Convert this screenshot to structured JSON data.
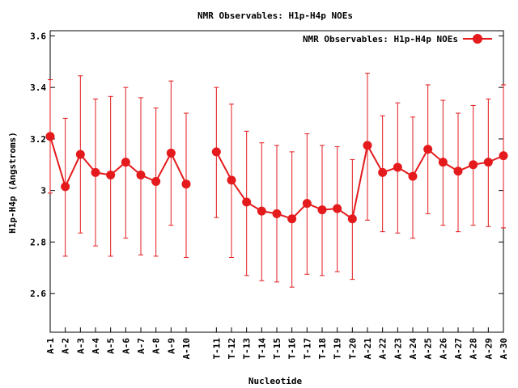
{
  "chart_data": {
    "type": "line",
    "title": "NMR Observables: H1p-H4p NOEs",
    "xlabel": "Nucleotide",
    "ylabel": "H1p-H4p (Angstroms)",
    "ylim": [
      2.45,
      3.62
    ],
    "yticks": [
      2.6,
      2.8,
      3,
      3.2,
      3.4,
      3.6
    ],
    "ytick_labels": [
      "2.6",
      "2.8",
      "3",
      "3.2",
      "3.4",
      "3.6"
    ],
    "grid": false,
    "legend_position": "top-right",
    "color": "#e41a1c",
    "x_gap_after_index": 9,
    "categories": [
      "A-1",
      "A-2",
      "A-3",
      "A-4",
      "A-5",
      "A-6",
      "A-7",
      "A-8",
      "A-9",
      "A-10",
      "T-11",
      "T-12",
      "T-13",
      "T-14",
      "T-15",
      "T-16",
      "T-17",
      "T-18",
      "T-19",
      "T-20",
      "A-21",
      "A-22",
      "A-23",
      "A-24",
      "A-25",
      "A-26",
      "A-27",
      "A-28",
      "A-29",
      "A-30"
    ],
    "series": [
      {
        "name": "NMR Observables: H1p-H4p NOEs",
        "segments": [
          [
            0,
            9
          ],
          [
            10,
            29
          ]
        ],
        "values": [
          3.21,
          3.015,
          3.14,
          3.07,
          3.06,
          3.11,
          3.06,
          3.035,
          3.145,
          3.025,
          3.15,
          3.04,
          2.955,
          2.92,
          2.91,
          2.89,
          2.95,
          2.925,
          2.93,
          2.89,
          3.175,
          3.07,
          3.09,
          3.055,
          3.16,
          3.11,
          3.075,
          3.1,
          3.11,
          3.135
        ],
        "err_low": [
          2.99,
          2.745,
          2.835,
          2.785,
          2.745,
          2.815,
          2.75,
          2.745,
          2.865,
          2.74,
          2.895,
          2.74,
          2.67,
          2.65,
          2.645,
          2.625,
          2.675,
          2.67,
          2.685,
          2.655,
          2.885,
          2.84,
          2.835,
          2.815,
          2.91,
          2.865,
          2.84,
          2.865,
          2.86,
          2.855
        ],
        "err_high": [
          3.43,
          3.28,
          3.445,
          3.355,
          3.365,
          3.4,
          3.36,
          3.32,
          3.425,
          3.3,
          3.4,
          3.335,
          3.23,
          3.185,
          3.175,
          3.15,
          3.22,
          3.175,
          3.17,
          3.12,
          3.455,
          3.29,
          3.34,
          3.285,
          3.41,
          3.35,
          3.3,
          3.33,
          3.355,
          3.41
        ]
      }
    ]
  }
}
